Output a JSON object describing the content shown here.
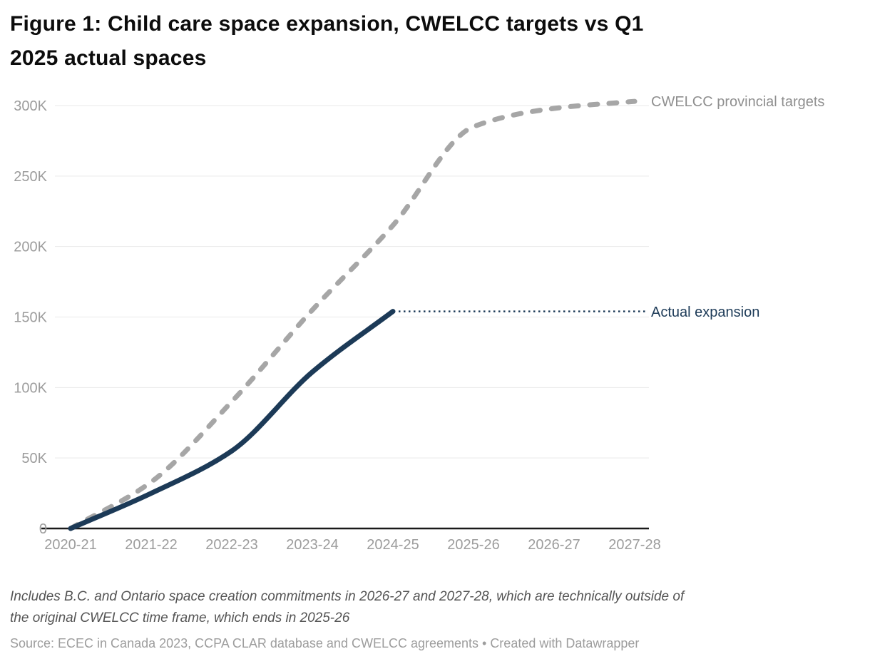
{
  "header": {
    "title": "Figure 1: Child care space expansion, CWELCC targets vs Q1\n2025 actual spaces"
  },
  "chart_data": {
    "type": "line",
    "categories": [
      "2020-21",
      "2021-22",
      "2022-23",
      "2023-24",
      "2024-25",
      "2025-26",
      "2026-27",
      "2027-28"
    ],
    "series": [
      {
        "name": "CWELCC provincial targets",
        "values": [
          0,
          33000,
          90000,
          155000,
          215000,
          285000,
          298000,
          303000
        ],
        "color": "#a6a6a6",
        "label_color": "#8f8f8f",
        "style": "dashed"
      },
      {
        "name": "Actual expansion",
        "values": [
          0,
          25000,
          55000,
          111000,
          154000,
          null,
          null,
          null
        ],
        "color": "#1c3a57",
        "label_color": "#1c3a57",
        "style": "solid",
        "leader": "dotted"
      }
    ],
    "title": "Figure 1: Child care space expansion, CWELCC targets vs Q1 2025 actual spaces",
    "xlabel": "",
    "ylabel": "",
    "ylim": [
      0,
      300000
    ],
    "y_ticks": [
      {
        "value": 0,
        "label": "0"
      },
      {
        "value": 50000,
        "label": "50K"
      },
      {
        "value": 100000,
        "label": "100K"
      },
      {
        "value": 150000,
        "label": "150K"
      },
      {
        "value": 200000,
        "label": "200K"
      },
      {
        "value": 250000,
        "label": "250K"
      },
      {
        "value": 300000,
        "label": "300K"
      }
    ],
    "grid": "horizontal",
    "legend_position": "line-end-labels"
  },
  "colors": {
    "grid": "#e9e9e9",
    "axis": "#1a1a1a",
    "tick_label": "#9c9c9c"
  },
  "footer": {
    "note": "Includes B.C. and Ontario space creation commitments in 2026-27 and 2027-28, which are technically outside of\nthe original CWELCC time frame, which ends in 2025-26",
    "source": "Source: ECEC in Canada 2023, CCPA CLAR database and CWELCC agreements • Created with Datawrapper"
  }
}
